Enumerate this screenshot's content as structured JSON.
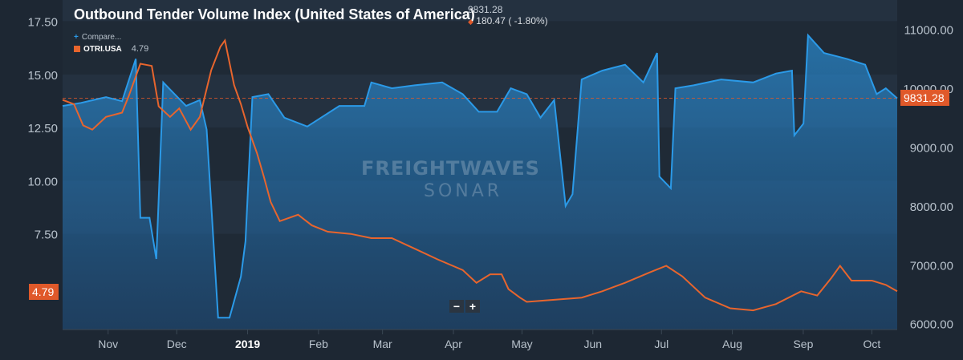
{
  "title": "Outbound Tender Volume Index (United States of America)",
  "quote": {
    "last": "9831.28",
    "change": "180.47",
    "change_pct": "( -1.80%)",
    "direction": "down"
  },
  "legend": {
    "compare_label": "Compare...",
    "otri_label": "OTRI.USA",
    "otri_value": "4.79"
  },
  "watermark": {
    "line1": "FREIGHTWAVES",
    "line2": "SONAR"
  },
  "zoom": {
    "minus": "−",
    "plus": "+"
  },
  "colors": {
    "background": "#1d2733",
    "otvi": "#2b9ae8",
    "otri": "#e8652d",
    "badge": "#e0592a"
  },
  "chart_data": {
    "type": "line",
    "x_type": "date",
    "x_ticks": [
      "Nov",
      "Dec",
      "2019",
      "Feb",
      "Mar",
      "Apr",
      "May",
      "Jun",
      "Jul",
      "Aug",
      "Sep",
      "Oct"
    ],
    "left_axis": {
      "ticks": [
        "7.50",
        "10.00",
        "12.50",
        "15.00",
        "17.50"
      ],
      "range": [
        3.0,
        18.5
      ]
    },
    "right_axis": {
      "ticks": [
        "6000.00",
        "7000.00",
        "8000.00",
        "9000.00",
        "10000.00",
        "11000.00"
      ],
      "range": [
        5900,
        11500
      ]
    },
    "reference_value": 9831.28,
    "last_values": {
      "otvi": "9831.28",
      "otri": "4.79"
    },
    "series": [
      {
        "name": "OTRI.USA",
        "axis": "left",
        "type": "line",
        "points": [
          [
            "2018-10-17",
            13.8
          ],
          [
            "2018-10-22",
            13.6
          ],
          [
            "2018-10-26",
            12.6
          ],
          [
            "2018-10-30",
            12.4
          ],
          [
            "2018-11-05",
            13.0
          ],
          [
            "2018-11-12",
            13.2
          ],
          [
            "2018-11-15",
            14.0
          ],
          [
            "2018-11-20",
            15.5
          ],
          [
            "2018-11-25",
            15.4
          ],
          [
            "2018-11-28",
            13.5
          ],
          [
            "2018-12-03",
            13.0
          ],
          [
            "2018-12-07",
            13.4
          ],
          [
            "2018-12-12",
            12.4
          ],
          [
            "2018-12-16",
            13.0
          ],
          [
            "2018-12-21",
            15.2
          ],
          [
            "2018-12-25",
            16.3
          ],
          [
            "2018-12-27",
            16.6
          ],
          [
            "2018-12-31",
            14.5
          ],
          [
            "2019-01-03",
            13.6
          ],
          [
            "2019-01-06",
            12.5
          ],
          [
            "2019-01-08",
            11.9
          ],
          [
            "2019-01-10",
            11.3
          ],
          [
            "2019-01-13",
            10.2
          ],
          [
            "2019-01-16",
            9.0
          ],
          [
            "2019-01-20",
            8.1
          ],
          [
            "2019-01-28",
            8.4
          ],
          [
            "2019-02-03",
            7.9
          ],
          [
            "2019-02-10",
            7.6
          ],
          [
            "2019-02-20",
            7.5
          ],
          [
            "2019-03-01",
            7.3
          ],
          [
            "2019-03-10",
            7.3
          ],
          [
            "2019-03-20",
            6.8
          ],
          [
            "2019-03-30",
            6.3
          ],
          [
            "2019-04-10",
            5.8
          ],
          [
            "2019-04-16",
            5.2
          ],
          [
            "2019-04-22",
            5.6
          ],
          [
            "2019-04-27",
            5.6
          ],
          [
            "2019-04-30",
            4.9
          ],
          [
            "2019-05-05",
            4.5
          ],
          [
            "2019-05-08",
            4.3
          ],
          [
            "2019-05-20",
            4.4
          ],
          [
            "2019-06-01",
            4.5
          ],
          [
            "2019-06-10",
            4.8
          ],
          [
            "2019-06-20",
            5.2
          ],
          [
            "2019-07-01",
            5.7
          ],
          [
            "2019-07-08",
            6.0
          ],
          [
            "2019-07-15",
            5.5
          ],
          [
            "2019-07-25",
            4.5
          ],
          [
            "2019-08-05",
            4.0
          ],
          [
            "2019-08-15",
            3.9
          ],
          [
            "2019-08-25",
            4.2
          ],
          [
            "2019-09-05",
            4.8
          ],
          [
            "2019-09-12",
            4.6
          ],
          [
            "2019-09-18",
            5.4
          ],
          [
            "2019-09-22",
            6.0
          ],
          [
            "2019-09-27",
            5.3
          ],
          [
            "2019-10-06",
            5.3
          ],
          [
            "2019-10-12",
            5.1
          ],
          [
            "2019-10-17",
            4.8
          ]
        ]
      },
      {
        "name": "",
        "axis": "right",
        "type": "area",
        "points": [
          [
            "2018-10-17",
            9700
          ],
          [
            "2018-10-25",
            9750
          ],
          [
            "2018-11-05",
            9850
          ],
          [
            "2018-11-12",
            9780
          ],
          [
            "2018-11-18",
            10500
          ],
          [
            "2018-11-20",
            7800
          ],
          [
            "2018-11-24",
            7800
          ],
          [
            "2018-11-27",
            7100
          ],
          [
            "2018-11-30",
            10100
          ],
          [
            "2018-12-05",
            9900
          ],
          [
            "2018-12-10",
            9700
          ],
          [
            "2018-12-16",
            9800
          ],
          [
            "2018-12-19",
            9300
          ],
          [
            "2018-12-24",
            6100
          ],
          [
            "2018-12-29",
            6100
          ],
          [
            "2019-01-03",
            6800
          ],
          [
            "2019-01-05",
            7400
          ],
          [
            "2019-01-08",
            9850
          ],
          [
            "2019-01-15",
            9900
          ],
          [
            "2019-01-22",
            9500
          ],
          [
            "2019-02-01",
            9350
          ],
          [
            "2019-02-15",
            9700
          ],
          [
            "2019-02-26",
            9700
          ],
          [
            "2019-03-01",
            10100
          ],
          [
            "2019-03-10",
            10000
          ],
          [
            "2019-03-20",
            10050
          ],
          [
            "2019-04-01",
            10100
          ],
          [
            "2019-04-10",
            9900
          ],
          [
            "2019-04-17",
            9600
          ],
          [
            "2019-04-25",
            9600
          ],
          [
            "2019-05-01",
            10000
          ],
          [
            "2019-05-08",
            9900
          ],
          [
            "2019-05-14",
            9500
          ],
          [
            "2019-05-20",
            9800
          ],
          [
            "2019-05-25",
            8000
          ],
          [
            "2019-05-28",
            8200
          ],
          [
            "2019-06-01",
            10150
          ],
          [
            "2019-06-10",
            10300
          ],
          [
            "2019-06-20",
            10400
          ],
          [
            "2019-06-28",
            10100
          ],
          [
            "2019-07-04",
            10600
          ],
          [
            "2019-07-05",
            8500
          ],
          [
            "2019-07-10",
            8300
          ],
          [
            "2019-07-12",
            10000
          ],
          [
            "2019-07-20",
            10050
          ],
          [
            "2019-08-01",
            10150
          ],
          [
            "2019-08-15",
            10100
          ],
          [
            "2019-08-25",
            10250
          ],
          [
            "2019-09-01",
            10300
          ],
          [
            "2019-09-02",
            9200
          ],
          [
            "2019-09-06",
            9400
          ],
          [
            "2019-09-08",
            10900
          ],
          [
            "2019-09-15",
            10600
          ],
          [
            "2019-09-25",
            10500
          ],
          [
            "2019-10-03",
            10400
          ],
          [
            "2019-10-08",
            9900
          ],
          [
            "2019-10-12",
            10000
          ],
          [
            "2019-10-17",
            9830
          ]
        ]
      }
    ]
  }
}
